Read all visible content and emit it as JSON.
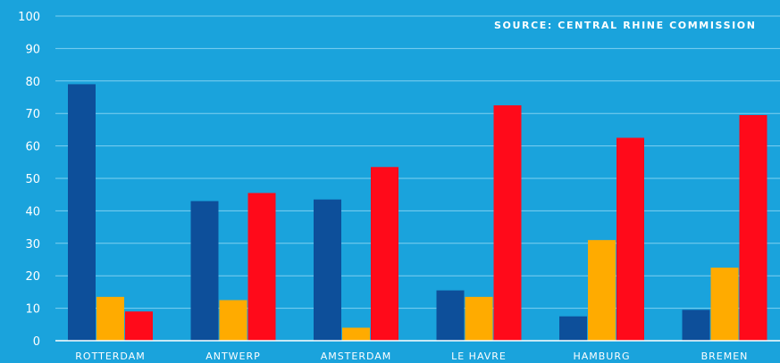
{
  "chart_data": {
    "type": "bar",
    "source": "SOURCE: CENTRAL RHINE COMMISSION",
    "categories": [
      "ROTTERDAM",
      "ANTWERP",
      "AMSTERDAM",
      "LE HAVRE",
      "HAMBURG",
      "BREMEN"
    ],
    "series": [
      {
        "color": "#0d4f9a",
        "values": [
          79,
          43,
          43.5,
          15.5,
          7.5,
          9.5
        ]
      },
      {
        "color": "#ffab00",
        "values": [
          13.5,
          12.5,
          4,
          13.5,
          31,
          22.5
        ]
      },
      {
        "color": "#ff0a1a",
        "values": [
          9,
          45.5,
          53.5,
          72.5,
          62.5,
          69.5
        ]
      }
    ],
    "ylim": [
      0,
      100
    ],
    "yticks": [
      0,
      10,
      20,
      30,
      40,
      50,
      60,
      70,
      80,
      90,
      100
    ],
    "grid": true
  }
}
